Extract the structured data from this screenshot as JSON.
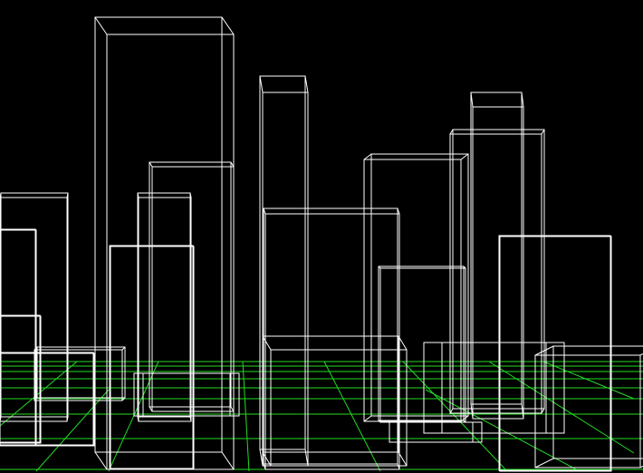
{
  "scene": {
    "background_color": "#000000",
    "wireframe_color": "#ffffff",
    "grid_color": "#22dd22",
    "render_mode": "wireframe",
    "building_count": 19
  }
}
